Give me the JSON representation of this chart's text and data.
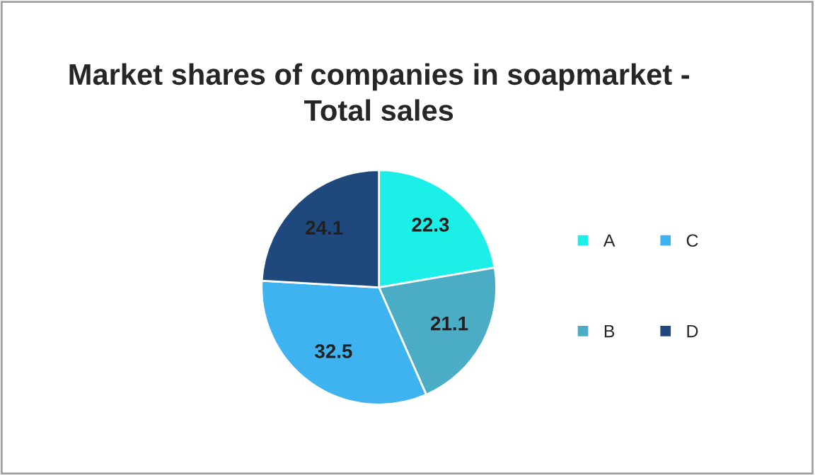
{
  "chart_data": {
    "type": "pie",
    "title": "Market shares of companies in soapmarket -\nTotal sales",
    "categories": [
      "A",
      "B",
      "C",
      "D"
    ],
    "values": [
      22.3,
      21.1,
      32.5,
      24.1
    ],
    "colors": [
      "#1ceee8",
      "#4bacc6",
      "#3fb3f0",
      "#1f497d"
    ],
    "data_labels": true,
    "legend": "right"
  }
}
